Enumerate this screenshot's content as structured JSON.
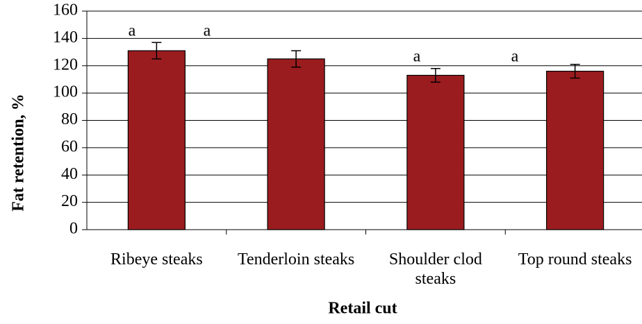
{
  "chart_data": {
    "type": "bar",
    "x_label": "Retail cut",
    "y_label": "Fat retention, %",
    "categories": [
      "Ribeye steaks",
      "Tenderloin steaks",
      "Shoulder clod steaks",
      "Top round steaks"
    ],
    "values": [
      131,
      125,
      113,
      116
    ],
    "errors": [
      6,
      6,
      5,
      5
    ],
    "color": "#9b1c1f",
    "ylim": [
      0,
      160
    ],
    "yticks": [
      0,
      20,
      40,
      60,
      80,
      100,
      120,
      140,
      160
    ],
    "grid": true,
    "annotations": [
      "a",
      "a",
      "a",
      "a"
    ]
  }
}
